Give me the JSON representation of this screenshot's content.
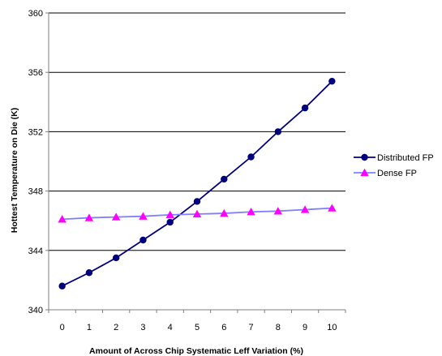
{
  "chart_data": {
    "type": "line",
    "xlabel": "Amount of Across Chip Systematic Leff Variation (%)",
    "ylabel": "Hottest Temperature on Die (K)",
    "categories": [
      "0",
      "1",
      "2",
      "3",
      "4",
      "5",
      "6",
      "7",
      "8",
      "9",
      "10"
    ],
    "x": [
      0,
      1,
      2,
      3,
      4,
      5,
      6,
      7,
      8,
      9,
      10
    ],
    "ylim": [
      340,
      360
    ],
    "yticks": [
      "340",
      "344",
      "348",
      "352",
      "356",
      "360"
    ],
    "grid": "horizontal",
    "legend": "right",
    "series": [
      {
        "name": "Distributed FP",
        "color": "#00007f",
        "marker": "circle",
        "values": [
          341.6,
          342.5,
          343.5,
          344.7,
          345.9,
          347.3,
          348.8,
          350.3,
          352.0,
          353.6,
          355.4
        ]
      },
      {
        "name": "Dense FP",
        "color": "#ff00ff",
        "line_color": "#7f7fff",
        "marker": "triangle",
        "values": [
          346.1,
          346.2,
          346.25,
          346.3,
          346.4,
          346.45,
          346.5,
          346.6,
          346.65,
          346.75,
          346.85
        ]
      }
    ]
  }
}
